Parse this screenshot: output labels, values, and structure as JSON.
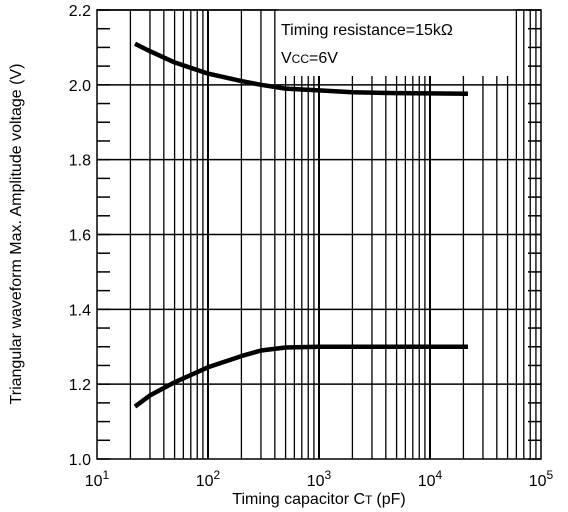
{
  "chart_data": {
    "type": "line",
    "title": "",
    "xlabel": "Timing capacitor C",
    "xlabel_sub": "T",
    "xlabel_unit": "(pF)",
    "ylabel": "Triangular waveform Max. Amplitude voltage (V)",
    "x_scale": "log",
    "xlim": [
      10,
      100000
    ],
    "ylim": [
      1.0,
      2.2
    ],
    "grid": true,
    "x_ticks": [
      {
        "value": 10,
        "base": "10",
        "exp": "1"
      },
      {
        "value": 100,
        "base": "10",
        "exp": "2"
      },
      {
        "value": 1000,
        "base": "10",
        "exp": "3"
      },
      {
        "value": 10000,
        "base": "10",
        "exp": "4"
      },
      {
        "value": 100000,
        "base": "10",
        "exp": "5"
      }
    ],
    "y_ticks": [
      {
        "value": 1.0,
        "label": "1.0"
      },
      {
        "value": 1.2,
        "label": "1.2"
      },
      {
        "value": 1.4,
        "label": "1.4"
      },
      {
        "value": 1.6,
        "label": "1.6"
      },
      {
        "value": 1.8,
        "label": "1.8"
      },
      {
        "value": 2.0,
        "label": "2.0"
      },
      {
        "value": 2.2,
        "label": "2.2"
      }
    ],
    "annotations": {
      "line1": "Timing resistance=15kΩ",
      "line2_main": "V",
      "line2_sub": "CC",
      "line2_rest": "=6V"
    },
    "series": [
      {
        "x": [
          22,
          30,
          50,
          100,
          200,
          300,
          500,
          1000,
          2000,
          5000,
          10000,
          22000
        ],
        "y": [
          2.11,
          2.09,
          2.06,
          2.03,
          2.01,
          2.0,
          1.99,
          1.985,
          1.98,
          1.978,
          1.977,
          1.976
        ]
      },
      {
        "x": [
          22,
          30,
          50,
          100,
          200,
          300,
          500,
          1000,
          2000,
          5000,
          10000,
          22000
        ],
        "y": [
          1.14,
          1.17,
          1.205,
          1.245,
          1.275,
          1.29,
          1.298,
          1.3,
          1.3,
          1.3,
          1.3,
          1.3
        ]
      }
    ]
  }
}
